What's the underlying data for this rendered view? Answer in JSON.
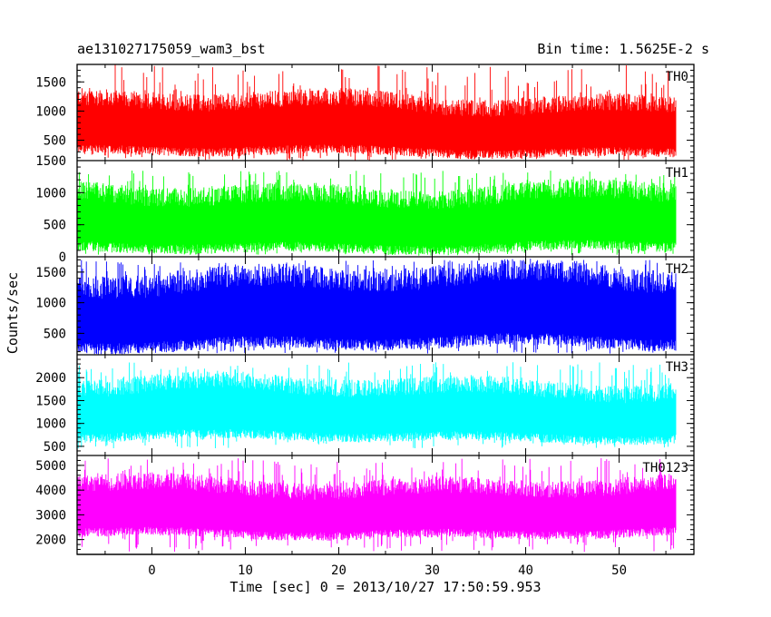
{
  "chart_data": {
    "type": "line",
    "title": "ae131027175059_wam3_bst",
    "subtitle": "Bin time: 1.5625E-2 s",
    "xlabel": "Time [sec] 0 = 2013/10/27 17:50:59.953",
    "ylabel": "Counts/sec",
    "xlim": [
      -8,
      58
    ],
    "x_ticks": [
      0,
      10,
      20,
      30,
      40,
      50
    ],
    "x_range_data": [
      -8,
      56.1
    ],
    "panels": [
      {
        "name": "TH0",
        "color": "#ff0000",
        "ylim": [
          150,
          1800
        ],
        "y_ticks": [
          500,
          1000,
          1500
        ],
        "envelope": {
          "low_mean": 300,
          "high_mean": 1150,
          "spike_high": 1800,
          "spike_low": 150
        }
      },
      {
        "name": "TH1",
        "color": "#00ff00",
        "ylim": [
          0,
          1500
        ],
        "y_ticks": [
          0,
          500,
          1000,
          1500
        ],
        "envelope": {
          "low_mean": 150,
          "high_mean": 1000,
          "spike_high": 1350,
          "spike_low": 30
        }
      },
      {
        "name": "TH2",
        "color": "#0000ff",
        "ylim": [
          150,
          1750
        ],
        "y_ticks": [
          500,
          1000,
          1500
        ],
        "envelope": {
          "low_mean": 330,
          "high_mean": 1400,
          "spike_high": 1700,
          "spike_low": 170
        }
      },
      {
        "name": "TH3",
        "color": "#00ffff",
        "ylim": [
          300,
          2500
        ],
        "y_ticks": [
          500,
          1000,
          1500,
          2000
        ],
        "envelope": {
          "low_mean": 700,
          "high_mean": 1800,
          "spike_high": 2350,
          "spike_low": 450
        }
      },
      {
        "name": "TH0123",
        "color": "#ff00ff",
        "ylim": [
          1400,
          5400
        ],
        "y_ticks": [
          2000,
          3000,
          4000,
          5000
        ],
        "envelope": {
          "low_mean": 2250,
          "high_mean": 4200,
          "spike_high": 5300,
          "spike_low": 1500
        }
      }
    ]
  }
}
